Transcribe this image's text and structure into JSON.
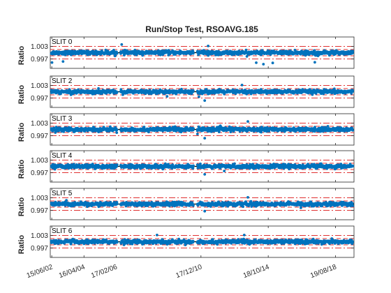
{
  "chart_data": {
    "type": "scatter",
    "title": "Run/Stop Test, RSOAVG.185",
    "ylabel": "Ratio",
    "yticks": [
      "1.003",
      "0.997"
    ],
    "ytick_values": [
      1.003,
      0.997
    ],
    "ylim": [
      0.9925,
      1.0075
    ],
    "reference_lines": {
      "center": 1.0,
      "inner": [
        0.9985,
        1.0015
      ],
      "outer": [
        0.997,
        1.003
      ]
    },
    "xlim": [
      "2002-05-15",
      "2019-09-08"
    ],
    "xtick_labels": [
      "15/06/02",
      "16/04/04",
      "17/02/06",
      "17/12/10",
      "18/10/14",
      "19/08/18"
    ],
    "xtick_dates": [
      "2002-06-15",
      "2004-04-16",
      "2006-02-17",
      "2010-12-17",
      "2014-10-18",
      "2018-08-19"
    ],
    "colors": {
      "points": "#0072BD",
      "center_line": "#000000",
      "limit_lines": "#e03030",
      "axes": "#262626"
    },
    "panels": [
      {
        "label": "SLIT 0",
        "outliers": [
          {
            "date": "2002-06-20",
            "y": 0.9953
          },
          {
            "date": "2003-02-05",
            "y": 0.9958
          },
          {
            "date": "2006-06-10",
            "y": 1.0039
          },
          {
            "date": "2011-05-15",
            "y": 1.0032
          },
          {
            "date": "2014-02-10",
            "y": 0.9952
          },
          {
            "date": "2014-07-10",
            "y": 0.9945
          },
          {
            "date": "2015-01-20",
            "y": 0.9951
          },
          {
            "date": "2017-06-15",
            "y": 0.9954
          }
        ]
      },
      {
        "label": "SLIT 2",
        "outliers": [
          {
            "date": "2009-01-10",
            "y": 0.9978
          },
          {
            "date": "2010-11-05",
            "y": 0.9976
          },
          {
            "date": "2011-03-05",
            "y": 0.9958
          },
          {
            "date": "2013-04-20",
            "y": 1.0032
          }
        ]
      },
      {
        "label": "SLIT 3",
        "outliers": [
          {
            "date": "2011-03-05",
            "y": 0.9958
          },
          {
            "date": "2010-10-05",
            "y": 0.9978
          },
          {
            "date": "2013-08-20",
            "y": 1.0038
          }
        ]
      },
      {
        "label": "SLIT 4",
        "outliers": [
          {
            "date": "2011-03-05",
            "y": 0.9962
          },
          {
            "date": "2012-04-15",
            "y": 0.9978
          }
        ]
      },
      {
        "label": "SLIT 5",
        "outliers": [
          {
            "date": "2011-03-05",
            "y": 0.9966
          },
          {
            "date": "2013-08-20",
            "y": 1.0032
          }
        ]
      },
      {
        "label": "SLIT 6",
        "outliers": [
          {
            "date": "2008-06-15",
            "y": 1.0032
          },
          {
            "date": "2013-06-05",
            "y": 1.0032
          }
        ]
      }
    ],
    "data_gaps": [
      [
        "2006-03-10",
        "2006-05-20"
      ],
      [
        "2010-07-15",
        "2010-10-01"
      ]
    ],
    "grid": false,
    "legend": "none"
  }
}
